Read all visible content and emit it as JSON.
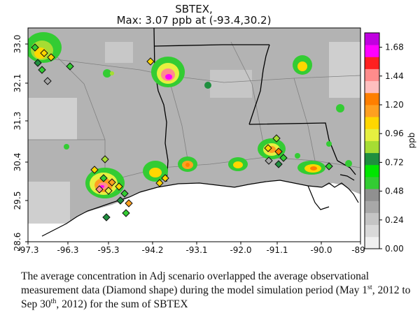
{
  "title": {
    "line1": "SBTEX,",
    "line2": "Max: 3.07 ppb at (-93.4,30.2)"
  },
  "map": {
    "x_ticks": [
      "-97.3",
      "-96.3",
      "-95.3",
      "-94.2",
      "-93.1",
      "-92.0",
      "-91.1",
      "-90.0",
      "-89"
    ],
    "y_ticks": [
      "33.0",
      "32.1",
      "31.3",
      "30.4",
      "29.5",
      "28.6"
    ],
    "extent": {
      "lon": [
        -97.3,
        -89.0
      ],
      "lat": [
        28.6,
        33.5
      ]
    },
    "max_marker": {
      "lon": -93.4,
      "lat": 30.2,
      "value_ppb": 3.07
    },
    "legend_marker": "diamond",
    "colors": {
      "land_gray": "#b3b3b3",
      "water": "#ffffff",
      "state_lines": "#000000",
      "roads": "#7a7a7a",
      "diamond_edge": "#111111"
    }
  },
  "colorbar": {
    "unit": "ppb",
    "ticks": [
      "0.00",
      "0.24",
      "0.48",
      "0.72",
      "0.96",
      "1.20",
      "1.44",
      "1.68"
    ],
    "range": [
      0.0,
      1.8
    ],
    "colors": [
      "#f0f0f0",
      "#d9d9d9",
      "#c4c4c4",
      "#a8a8a8",
      "#909090",
      "#33cc33",
      "#00e600",
      "#1f8f3f",
      "#a6dd33",
      "#e6f040",
      "#ffd700",
      "#ffa020",
      "#ff7f00",
      "#ffbfbf",
      "#ff8c8c",
      "#ff2020",
      "#ff00ff",
      "#c000e0"
    ]
  },
  "caption": {
    "part1": "The average concentration in Adj scenario overlapped the average observational measurement data (Diamond shape) during the model simulation period (May 1",
    "sup1": "st",
    "part2": ", 2012 to Sep 30",
    "sup2": "th",
    "part3": ", 2012) for the sum of SBTEX"
  }
}
